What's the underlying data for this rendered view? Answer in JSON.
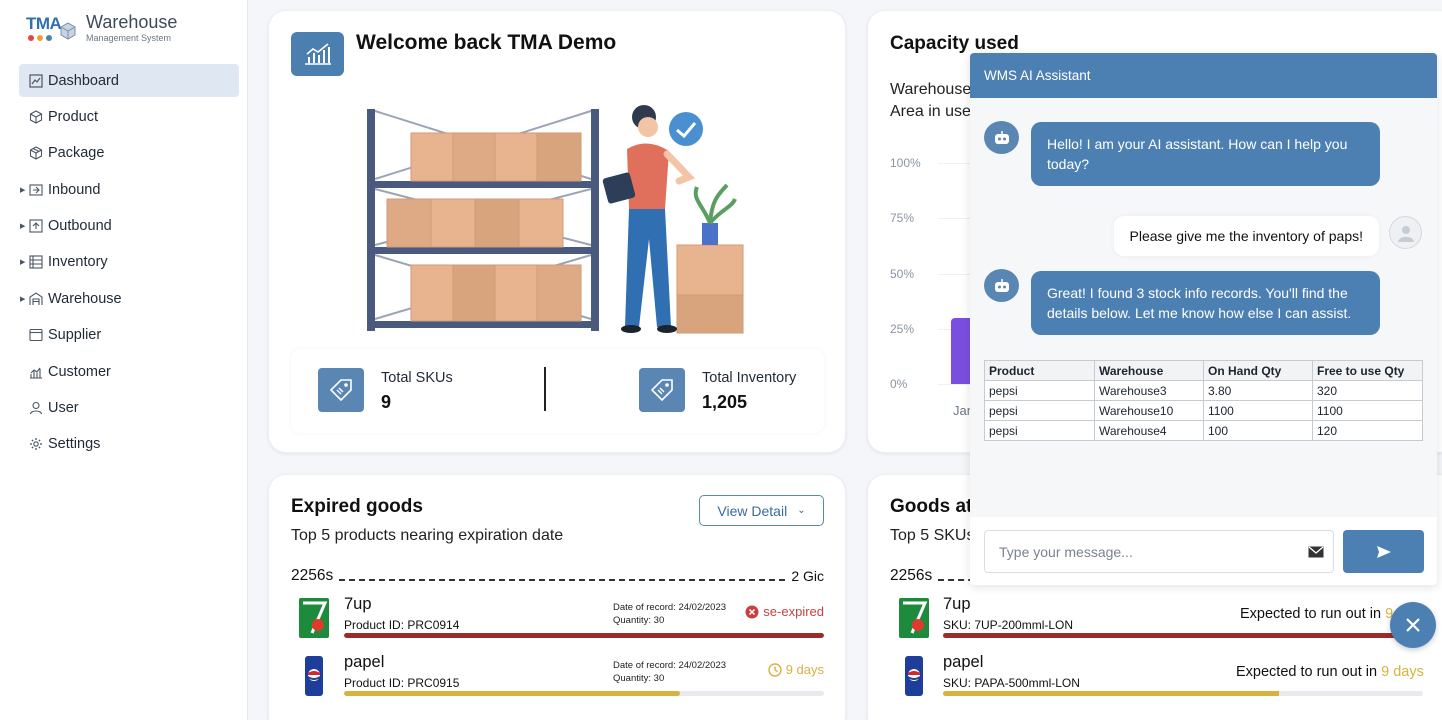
{
  "app": {
    "logo_mark": "TMA",
    "logo_title": "Warehouse",
    "logo_subtitle": "Management System",
    "accent": "#4d80b2"
  },
  "sidebar": {
    "items": [
      {
        "label": "Dashboard",
        "icon": "dashboard-icon",
        "active": true,
        "expandable": false
      },
      {
        "label": "Product",
        "icon": "cube-icon",
        "active": false,
        "expandable": false
      },
      {
        "label": "Package",
        "icon": "package-icon",
        "active": false,
        "expandable": false
      },
      {
        "label": "Inbound",
        "icon": "inbound-icon",
        "active": false,
        "expandable": true
      },
      {
        "label": "Outbound",
        "icon": "outbound-icon",
        "active": false,
        "expandable": true
      },
      {
        "label": "Inventory",
        "icon": "inventory-icon",
        "active": false,
        "expandable": true
      },
      {
        "label": "Warehouse",
        "icon": "warehouse-icon",
        "active": false,
        "expandable": true
      },
      {
        "label": "Supplier",
        "icon": "supplier-icon",
        "active": false,
        "expandable": false
      },
      {
        "label": "Customer",
        "icon": "customer-icon",
        "active": false,
        "expandable": false
      },
      {
        "label": "User",
        "icon": "user-icon",
        "active": false,
        "expandable": false
      },
      {
        "label": "Settings",
        "icon": "gear-icon",
        "active": false,
        "expandable": false
      }
    ]
  },
  "welcome": {
    "title": "Welcome back TMA Demo",
    "stats": {
      "skus_label": "Total SKUs",
      "skus_value": "9",
      "inventory_label": "Total Inventory",
      "inventory_value": "1,205"
    }
  },
  "capacity": {
    "title": "Capacity used",
    "subtitle_line1": "Warehouse",
    "subtitle_line2": "Area in use",
    "y_ticks": [
      "100%",
      "75%",
      "50%",
      "25%",
      "0%"
    ],
    "x_tick": "Jan"
  },
  "chart_data": {
    "type": "bar",
    "title": "Capacity used",
    "categories": [
      "Jan"
    ],
    "values": [
      30
    ],
    "ylim": [
      0,
      100
    ],
    "y_tick_labels": [
      "0%",
      "25%",
      "50%",
      "75%",
      "100%"
    ],
    "grid": true,
    "bar_color": "#7a4fe0"
  },
  "expired": {
    "title": "Expired goods",
    "subtitle": "Top 5 products nearing expiration date",
    "view_button": "View Detail",
    "row_start": "2256s",
    "row_end": "2 Gic",
    "items": [
      {
        "name": "7up",
        "pid": "Product ID: PRC0914",
        "record": "Date of record: 24/02/2023",
        "qty": "Quantity: 30",
        "status": "se-expired",
        "status_color": "#c94040",
        "progress": 1.0,
        "bar_color": "#9b2c2c"
      },
      {
        "name": "papel",
        "pid": "Product ID: PRC0915",
        "record": "Date of record: 24/02/2023",
        "qty": "Quantity: 30",
        "status": "9 days",
        "status_color": "#d9b13e",
        "progress": 0.7,
        "bar_color": "#d9b13e"
      }
    ]
  },
  "goods": {
    "title": "Goods at",
    "subtitle": "Top 5 SKUs",
    "row_start": "2256s",
    "items": [
      {
        "name": "7up",
        "sku": "SKU: 7UP-200mml-LON",
        "expected": "Expected to run out in",
        "days": "9",
        "progress": 1.0,
        "bar_color": "#9b2c2c"
      },
      {
        "name": "papel",
        "sku": "SKU: PAPA-500mml-LON",
        "expected": "Expected to run out in",
        "days": "9 days",
        "progress": 0.7,
        "bar_color": "#d9b13e"
      }
    ]
  },
  "chat": {
    "header": "WMS AI Assistant",
    "bot_greeting": "Hello! I am your AI assistant. How can I help you today?",
    "user_message": "Please give me the inventory of paps!",
    "bot_reply": "Great! I found 3 stock info records. You'll find the details below. Let me know how else I can assist.",
    "table": {
      "headers": [
        "Product",
        "Warehouse",
        "On Hand Qty",
        "Free to use Qty"
      ],
      "rows": [
        [
          "pepsi",
          "Warehouse3",
          "3.80",
          "320"
        ],
        [
          "pepsi",
          "Warehouse10",
          "1100",
          "1100"
        ],
        [
          "pepsi",
          "Warehouse4",
          "100",
          "120"
        ]
      ]
    },
    "input_placeholder": "Type your message..."
  }
}
